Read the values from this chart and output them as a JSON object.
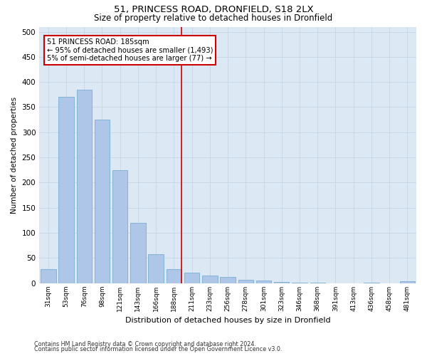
{
  "title1": "51, PRINCESS ROAD, DRONFIELD, S18 2LX",
  "title2": "Size of property relative to detached houses in Dronfield",
  "xlabel": "Distribution of detached houses by size in Dronfield",
  "ylabel": "Number of detached properties",
  "footer1": "Contains HM Land Registry data © Crown copyright and database right 2024.",
  "footer2": "Contains public sector information licensed under the Open Government Licence v3.0.",
  "bar_labels": [
    "31sqm",
    "53sqm",
    "76sqm",
    "98sqm",
    "121sqm",
    "143sqm",
    "166sqm",
    "188sqm",
    "211sqm",
    "233sqm",
    "256sqm",
    "278sqm",
    "301sqm",
    "323sqm",
    "346sqm",
    "368sqm",
    "391sqm",
    "413sqm",
    "436sqm",
    "458sqm",
    "481sqm"
  ],
  "bar_values": [
    27,
    370,
    385,
    325,
    225,
    120,
    57,
    27,
    20,
    15,
    12,
    6,
    5,
    2,
    1,
    1,
    0,
    0,
    1,
    0,
    3
  ],
  "bar_color": "#aec6e8",
  "bar_edge_color": "#7aaed0",
  "property_line_x": 7,
  "annotation_title": "51 PRINCESS ROAD: 185sqm",
  "annotation_line1": "← 95% of detached houses are smaller (1,493)",
  "annotation_line2": "5% of semi-detached houses are larger (77) →",
  "annotation_box_color": "#ffffff",
  "annotation_box_edge_color": "#cc0000",
  "vline_color": "#cc0000",
  "grid_color": "#c8d8e8",
  "bg_color": "#dce8f4",
  "ylim": [
    0,
    510
  ],
  "yticks": [
    0,
    50,
    100,
    150,
    200,
    250,
    300,
    350,
    400,
    450,
    500
  ]
}
